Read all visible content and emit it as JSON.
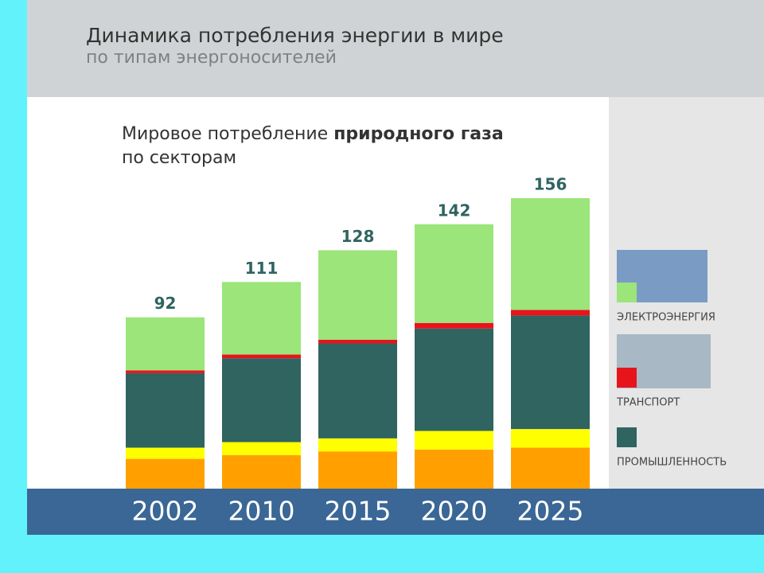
{
  "header": {
    "title": "Динамика потребления энергии в мире",
    "subtitle": "по типам энергоносителей"
  },
  "chart_data": {
    "type": "stacked_bar",
    "title": {
      "regular": "Мировое потребление",
      "bold": "природного газа"
    },
    "subtitle": "по секторам",
    "categories": [
      "2002",
      "2010",
      "2015",
      "2020",
      "2025"
    ],
    "totals": [
      92,
      111,
      128,
      142,
      156
    ],
    "series": [
      {
        "color": "#ffa000",
        "values": [
          16,
          18,
          20,
          21,
          22
        ]
      },
      {
        "color": "#ffff00",
        "values": [
          6,
          7,
          7,
          10,
          10
        ]
      },
      {
        "name": "ПРОМЫШЛЕННОСТЬ",
        "color": "#2f6461",
        "values": [
          40,
          45,
          51,
          55,
          61
        ]
      },
      {
        "name": "ТРАНСПОРТ",
        "color": "#e8141c",
        "values": [
          1.5,
          2,
          2,
          3,
          3
        ]
      },
      {
        "name": "ЭЛЕКТРОЭНЕРГИЯ",
        "color": "#9be57a",
        "values": [
          28.5,
          39,
          48,
          53,
          60
        ]
      }
    ]
  }
}
